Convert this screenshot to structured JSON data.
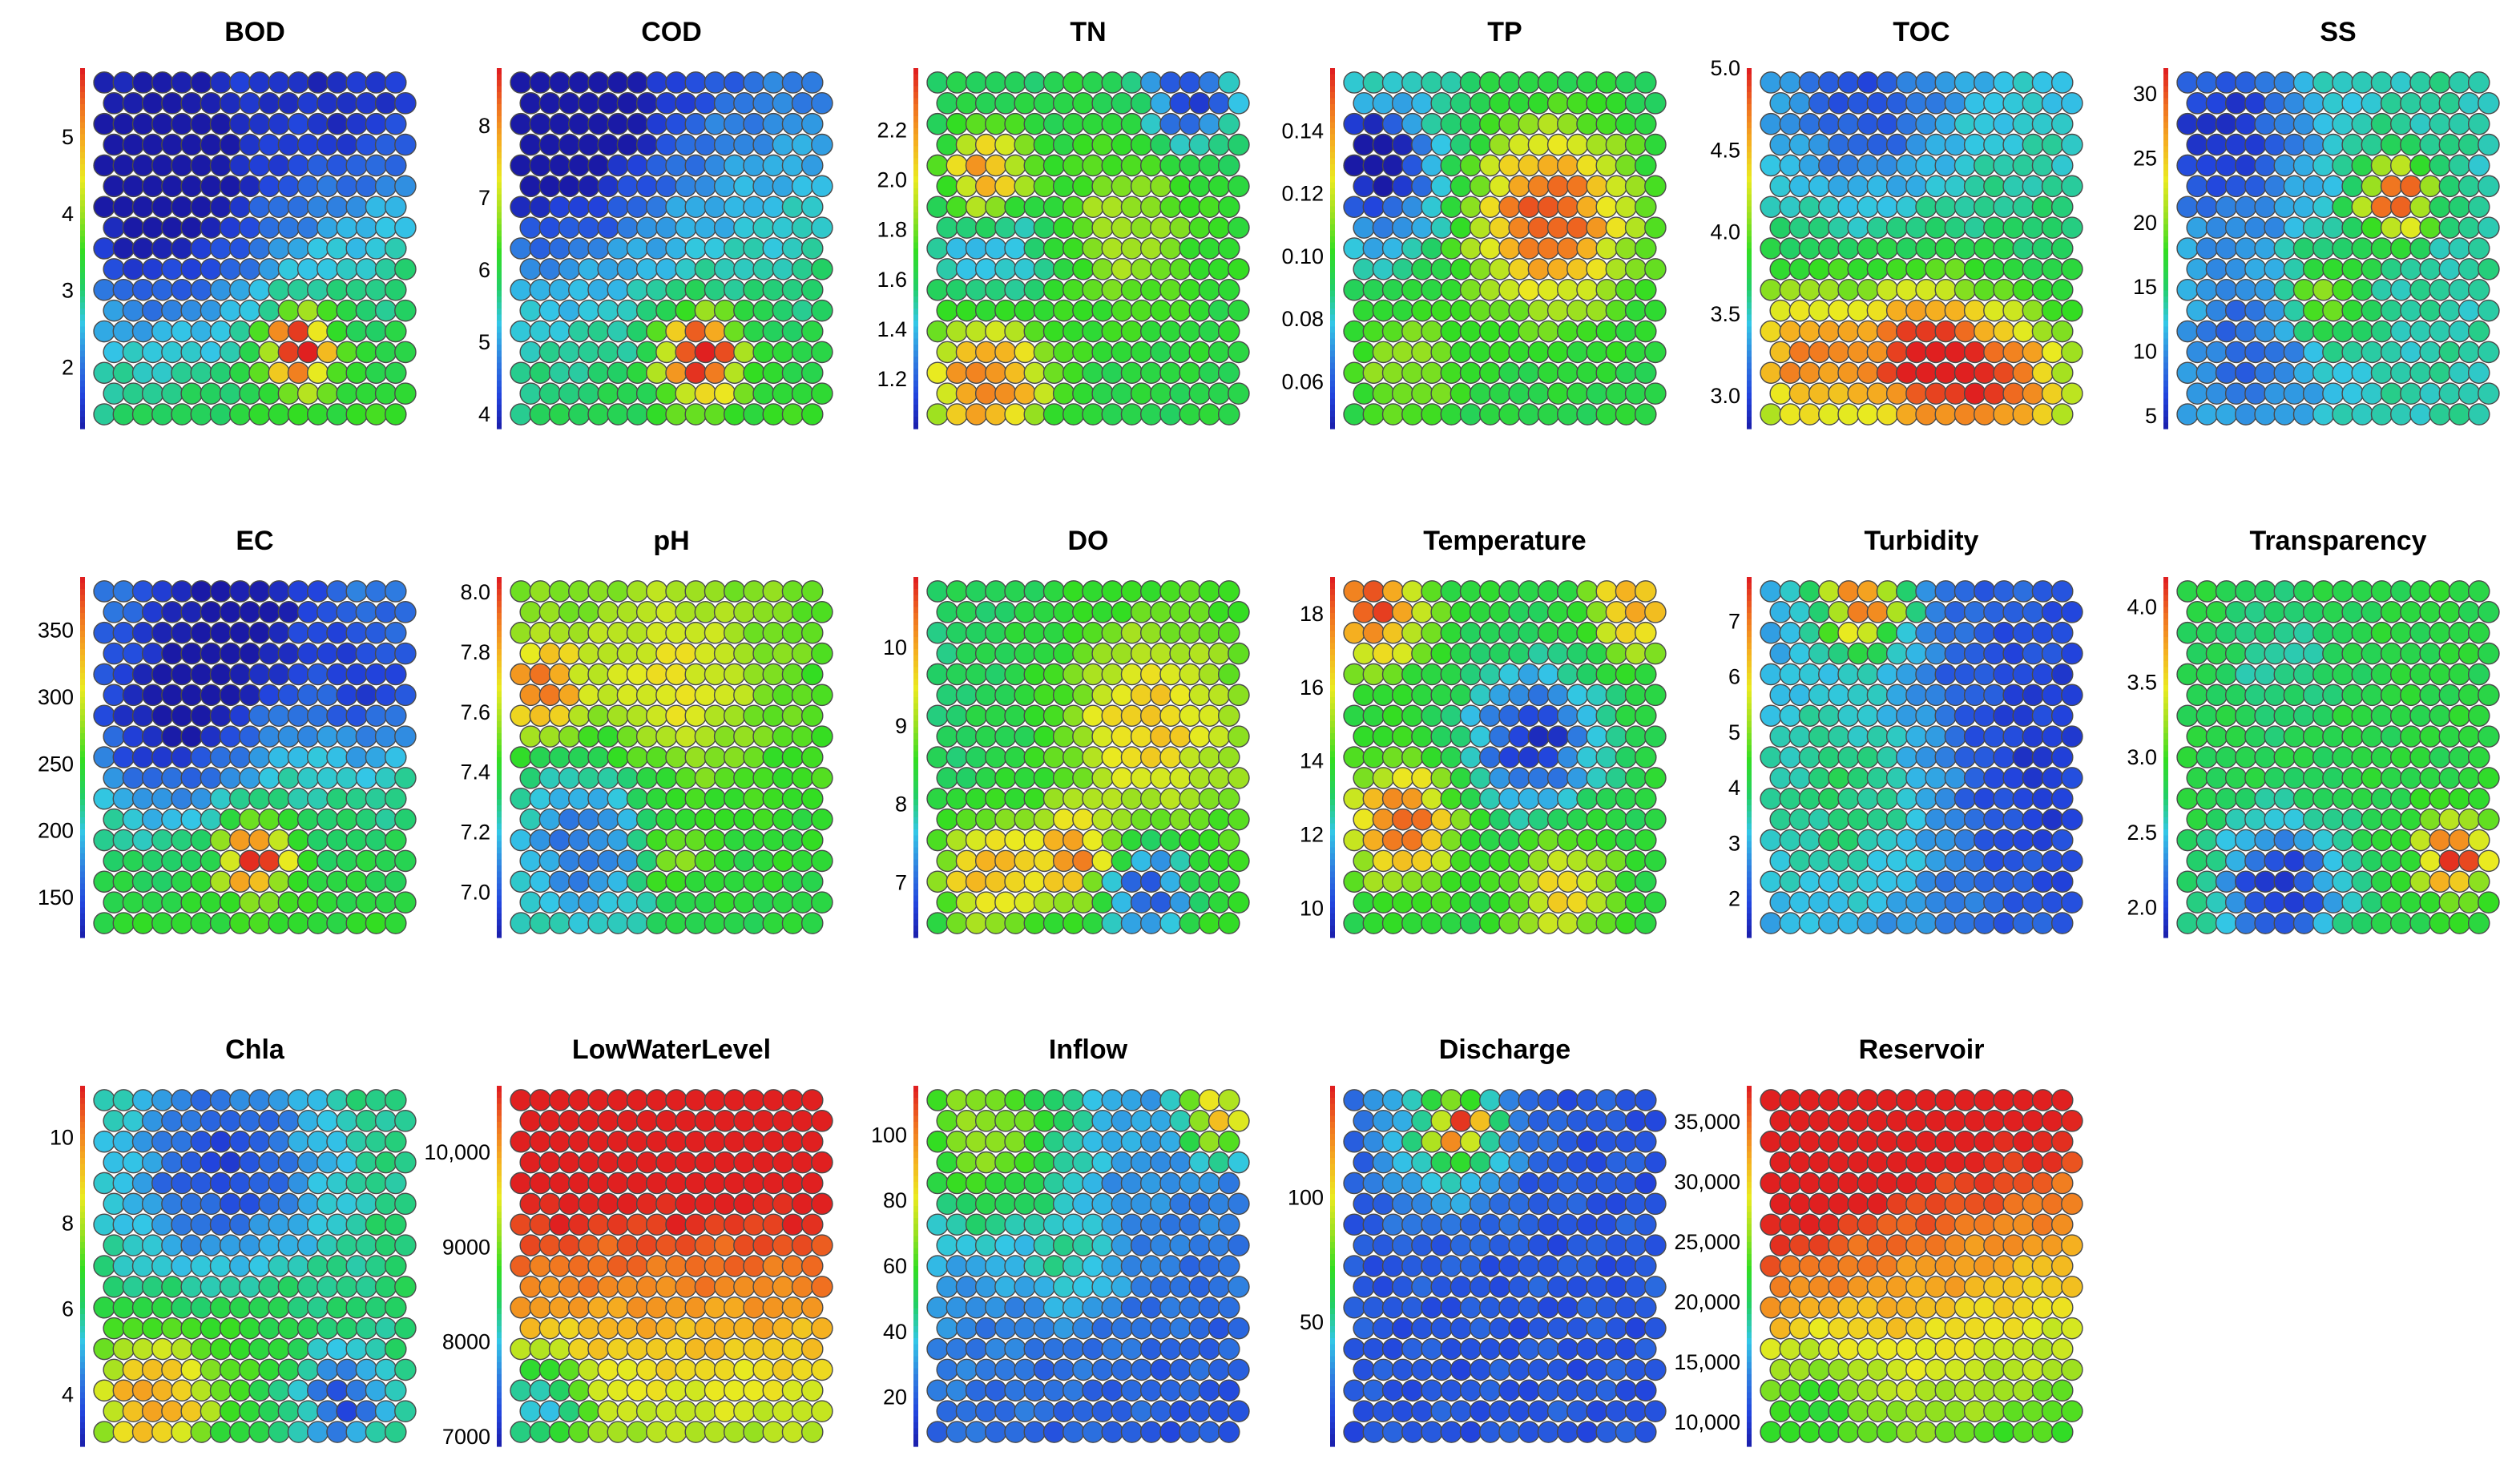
{
  "colormap": [
    "#1a1aa6",
    "#2244dd",
    "#2f7fe0",
    "#33c6e6",
    "#22cf66",
    "#33dd22",
    "#9be020",
    "#eaea20",
    "#f5b020",
    "#f07020",
    "#e02020"
  ],
  "chart_data": [
    {
      "type": "heatmap",
      "title": "BOD",
      "ticks": [
        "5",
        "4",
        "3",
        "2"
      ],
      "range": [
        1.2,
        5.9
      ],
      "features": {
        "base": 0.3,
        "gx": 0.1,
        "gy": 0.3,
        "blobs": [
          {
            "cx": 0.2,
            "cy": 0.35,
            "r": 0.25,
            "v": -0.3
          },
          {
            "cx": 0.65,
            "cy": 0.8,
            "r": 0.08,
            "v": 0.7
          },
          {
            "cx": 0.85,
            "cy": 0.1,
            "r": 0.2,
            "v": -0.15
          }
        ]
      }
    },
    {
      "type": "heatmap",
      "title": "COD",
      "ticks": [
        "8",
        "7",
        "6",
        "5",
        "4"
      ],
      "range": [
        3.8,
        8.8
      ],
      "features": {
        "base": 0.3,
        "gx": 0.1,
        "gy": 0.3,
        "blobs": [
          {
            "cx": 0.1,
            "cy": 0.1,
            "r": 0.25,
            "v": -0.3
          },
          {
            "cx": 0.6,
            "cy": 0.82,
            "r": 0.09,
            "v": 0.7
          }
        ]
      }
    },
    {
      "type": "heatmap",
      "title": "TN",
      "ticks": [
        "2.2",
        "2.0",
        "1.8",
        "1.6",
        "1.4",
        "1.2"
      ],
      "range": [
        1.0,
        2.45
      ],
      "features": {
        "base": 0.42,
        "gx": 0.05,
        "gy": 0.0,
        "blobs": [
          {
            "cx": 0.15,
            "cy": 0.9,
            "r": 0.15,
            "v": 0.5
          },
          {
            "cx": 0.15,
            "cy": 0.28,
            "r": 0.1,
            "v": 0.5
          },
          {
            "cx": 0.6,
            "cy": 0.45,
            "r": 0.2,
            "v": 0.2
          },
          {
            "cx": 0.2,
            "cy": 0.5,
            "r": 0.15,
            "v": -0.2
          },
          {
            "cx": 0.85,
            "cy": 0.05,
            "r": 0.1,
            "v": -0.4
          }
        ]
      }
    },
    {
      "type": "heatmap",
      "title": "TP",
      "ticks": [
        "0.14",
        "0.12",
        "0.10",
        "0.08",
        "0.06"
      ],
      "range": [
        0.045,
        0.16
      ],
      "features": {
        "base": 0.4,
        "gx": 0.05,
        "gy": 0.05,
        "blobs": [
          {
            "cx": 0.65,
            "cy": 0.4,
            "r": 0.2,
            "v": 0.55
          },
          {
            "cx": 0.1,
            "cy": 0.3,
            "r": 0.15,
            "v": -0.3
          },
          {
            "cx": 0.05,
            "cy": 0.2,
            "r": 0.06,
            "v": -0.4
          },
          {
            "cx": 0.15,
            "cy": 0.85,
            "r": 0.15,
            "v": 0.2
          }
        ]
      }
    },
    {
      "type": "heatmap",
      "title": "TOC",
      "ticks": [
        "5.0",
        "4.5",
        "4.0",
        "3.5",
        "3.0"
      ],
      "range": [
        2.8,
        5.0
      ],
      "features": {
        "base": 0.4,
        "gx": 0.0,
        "gy": 0.2,
        "blobs": [
          {
            "cx": 0.5,
            "cy": 0.82,
            "r": 0.15,
            "v": 0.55
          },
          {
            "cx": 0.1,
            "cy": 0.82,
            "r": 0.15,
            "v": 0.4
          },
          {
            "cx": 0.8,
            "cy": 0.9,
            "r": 0.15,
            "v": 0.4
          },
          {
            "cx": 0.3,
            "cy": 0.1,
            "r": 0.2,
            "v": -0.2
          }
        ]
      }
    },
    {
      "type": "heatmap",
      "title": "SS",
      "ticks": [
        "30",
        "25",
        "20",
        "15",
        "10",
        "5"
      ],
      "range": [
        4,
        32
      ],
      "features": {
        "base": 0.35,
        "gx": 0.0,
        "gy": 0.0,
        "blobs": [
          {
            "cx": 0.7,
            "cy": 0.35,
            "r": 0.08,
            "v": 0.65
          },
          {
            "cx": 0.1,
            "cy": 0.15,
            "r": 0.2,
            "v": -0.3
          },
          {
            "cx": 0.2,
            "cy": 0.8,
            "r": 0.2,
            "v": -0.2
          },
          {
            "cx": 0.45,
            "cy": 0.65,
            "r": 0.1,
            "v": 0.3
          }
        ]
      }
    },
    {
      "type": "heatmap",
      "title": "EC",
      "ticks": [
        "350",
        "300",
        "250",
        "200",
        "150"
      ],
      "range": [
        120,
        390
      ],
      "features": {
        "base": 0.35,
        "gx": 0.0,
        "gy": 0.25,
        "blobs": [
          {
            "cx": 0.5,
            "cy": 0.8,
            "r": 0.08,
            "v": 0.6
          },
          {
            "cx": 0.2,
            "cy": 0.4,
            "r": 0.2,
            "v": -0.3
          },
          {
            "cx": 0.45,
            "cy": 0.1,
            "r": 0.2,
            "v": -0.25
          },
          {
            "cx": 0.9,
            "cy": 0.3,
            "r": 0.15,
            "v": -0.2
          }
        ]
      }
    },
    {
      "type": "heatmap",
      "title": "pH",
      "ticks": [
        "8.0",
        "7.8",
        "7.6",
        "7.4",
        "7.2",
        "7.0"
      ],
      "range": [
        6.85,
        8.05
      ],
      "features": {
        "base": 0.5,
        "gx": 0.0,
        "gy": -0.1,
        "blobs": [
          {
            "cx": 0.05,
            "cy": 0.3,
            "r": 0.1,
            "v": 0.4
          },
          {
            "cx": 0.2,
            "cy": 0.75,
            "r": 0.2,
            "v": -0.3
          },
          {
            "cx": 0.5,
            "cy": 0.3,
            "r": 0.2,
            "v": 0.2
          },
          {
            "cx": 0.5,
            "cy": 0.8,
            "r": 0.08,
            "v": 0.2
          }
        ]
      }
    },
    {
      "type": "heatmap",
      "title": "DO",
      "ticks": [
        "10",
        "9",
        "8",
        "7"
      ],
      "range": [
        6.3,
        10.9
      ],
      "features": {
        "base": 0.45,
        "gx": 0.1,
        "gy": 0.0,
        "blobs": [
          {
            "cx": 0.15,
            "cy": 0.85,
            "r": 0.12,
            "v": 0.4
          },
          {
            "cx": 0.45,
            "cy": 0.8,
            "r": 0.1,
            "v": 0.4
          },
          {
            "cx": 0.7,
            "cy": 0.4,
            "r": 0.2,
            "v": 0.3
          },
          {
            "cx": 0.7,
            "cy": 0.9,
            "r": 0.1,
            "v": -0.4
          }
        ]
      }
    },
    {
      "type": "heatmap",
      "title": "Temperature",
      "ticks": [
        "18",
        "16",
        "14",
        "12",
        "10"
      ],
      "range": [
        9.2,
        19.0
      ],
      "features": {
        "base": 0.45,
        "gx": 0.0,
        "gy": 0.0,
        "blobs": [
          {
            "cx": 0.05,
            "cy": 0.05,
            "r": 0.12,
            "v": 0.5
          },
          {
            "cx": 0.95,
            "cy": 0.05,
            "r": 0.1,
            "v": 0.4
          },
          {
            "cx": 0.15,
            "cy": 0.7,
            "r": 0.12,
            "v": 0.5
          },
          {
            "cx": 0.6,
            "cy": 0.45,
            "r": 0.15,
            "v": -0.4
          },
          {
            "cx": 0.7,
            "cy": 0.9,
            "r": 0.12,
            "v": 0.3
          }
        ]
      }
    },
    {
      "type": "heatmap",
      "title": "Turbidity",
      "ticks": [
        "7",
        "6",
        "5",
        "4",
        "3",
        "2"
      ],
      "range": [
        1.3,
        7.8
      ],
      "features": {
        "base": 0.2,
        "gx": -0.1,
        "gy": 0.0,
        "blobs": [
          {
            "cx": 0.3,
            "cy": 0.03,
            "r": 0.1,
            "v": 0.7
          },
          {
            "cx": 0.3,
            "cy": 0.6,
            "r": 0.25,
            "v": 0.2
          },
          {
            "cx": 0.75,
            "cy": 0.5,
            "r": 0.3,
            "v": -0.1
          }
        ]
      }
    },
    {
      "type": "heatmap",
      "title": "Transparency",
      "ticks": [
        "4.0",
        "3.5",
        "3.0",
        "2.5",
        "2.0"
      ],
      "range": [
        1.8,
        4.2
      ],
      "features": {
        "base": 0.45,
        "gx": 0.0,
        "gy": 0.0,
        "blobs": [
          {
            "cx": 0.9,
            "cy": 0.8,
            "r": 0.08,
            "v": 0.55
          },
          {
            "cx": 0.3,
            "cy": 0.9,
            "r": 0.15,
            "v": -0.4
          },
          {
            "cx": 0.3,
            "cy": 0.2,
            "r": 0.15,
            "v": -0.1
          }
        ]
      }
    },
    {
      "type": "heatmap",
      "title": "Chla",
      "ticks": [
        "10",
        "8",
        "6",
        "4"
      ],
      "range": [
        2.8,
        11.2
      ],
      "features": {
        "base": 0.4,
        "gx": 0.0,
        "gy": 0.0,
        "blobs": [
          {
            "cx": 0.15,
            "cy": 0.9,
            "r": 0.15,
            "v": 0.45
          },
          {
            "cx": 0.4,
            "cy": 0.2,
            "r": 0.25,
            "v": -0.3
          },
          {
            "cx": 0.8,
            "cy": 0.9,
            "r": 0.1,
            "v": -0.3
          },
          {
            "cx": 0.5,
            "cy": 0.7,
            "r": 0.15,
            "v": 0.1
          }
        ]
      }
    },
    {
      "type": "heatmap",
      "title": "LowWaterLevel",
      "ticks": [
        "10,000",
        "9000",
        "8000",
        "7000"
      ],
      "range": [
        6900,
        10700
      ],
      "features": {
        "base": 0.9,
        "gx": 0.0,
        "gy": -0.55,
        "blobs": [
          {
            "cx": 0.05,
            "cy": 0.9,
            "r": 0.1,
            "v": -0.4
          }
        ]
      }
    },
    {
      "type": "heatmap",
      "title": "Inflow",
      "ticks": [
        "100",
        "80",
        "60",
        "40",
        "20"
      ],
      "range": [
        5,
        115
      ],
      "features": {
        "base": 0.2,
        "gx": -0.05,
        "gy": -0.1,
        "blobs": [
          {
            "cx": 0.15,
            "cy": 0.1,
            "r": 0.2,
            "v": 0.35
          },
          {
            "cx": 0.95,
            "cy": 0.05,
            "r": 0.08,
            "v": 0.6
          },
          {
            "cx": 0.45,
            "cy": 0.5,
            "r": 0.1,
            "v": 0.15
          }
        ]
      }
    },
    {
      "type": "heatmap",
      "title": "Discharge",
      "ticks": [
        "100",
        "50"
      ],
      "range": [
        0,
        145
      ],
      "features": {
        "base": 0.13,
        "gx": 0.0,
        "gy": 0.0,
        "blobs": [
          {
            "cx": 0.3,
            "cy": 0.1,
            "r": 0.15,
            "v": 0.3
          },
          {
            "cx": 0.35,
            "cy": 0.08,
            "r": 0.06,
            "v": 0.6
          }
        ]
      }
    },
    {
      "type": "heatmap",
      "title": "Reservoir",
      "ticks": [
        "35,000",
        "30,000",
        "25,000",
        "20,000",
        "15,000",
        "10,000"
      ],
      "range": [
        8000,
        38000
      ],
      "features": {
        "base": 0.85,
        "gx": -0.15,
        "gy": -0.55,
        "blobs": [
          {
            "cx": 0.1,
            "cy": 0.9,
            "r": 0.15,
            "v": -0.2
          },
          {
            "cx": 0.1,
            "cy": 0.05,
            "r": 0.15,
            "v": 0.2
          }
        ]
      }
    }
  ]
}
